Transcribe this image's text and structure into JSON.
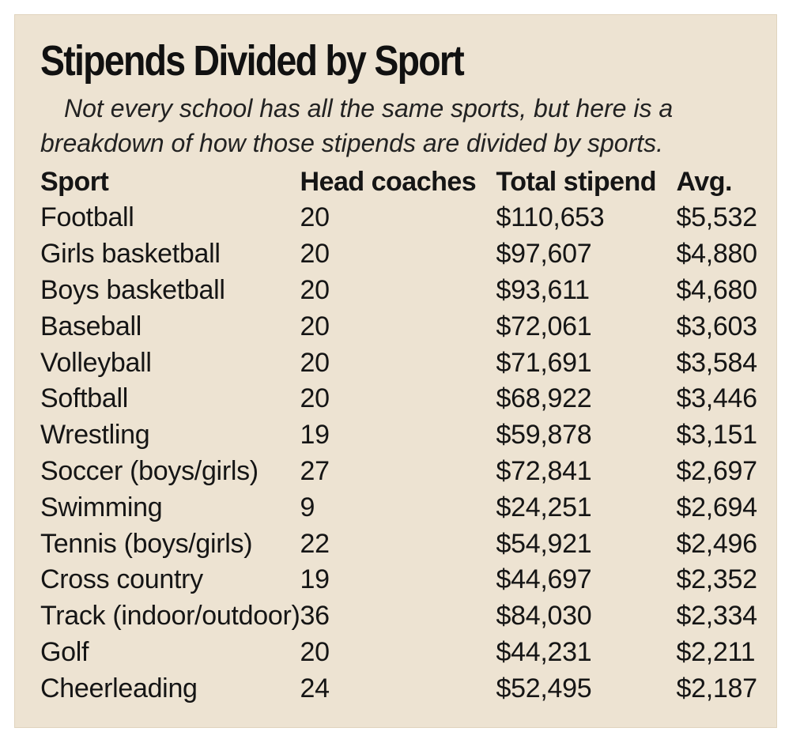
{
  "title": "Stipends Divided by Sport",
  "subtitle": {
    "line1": "Not every school has all the same sports, but here is a",
    "line2": "breakdown of how those stipends are divided by sports."
  },
  "table": {
    "headers": {
      "sport": "Sport",
      "head_coaches": "Head coaches",
      "total_stipend": "Total stipend",
      "avg": "Avg."
    },
    "rows": [
      {
        "sport": "Football",
        "head_coaches": "20",
        "total_stipend": "$110,653",
        "avg": "$5,532"
      },
      {
        "sport": "Girls basketball",
        "head_coaches": "20",
        "total_stipend": "$97,607",
        "avg": "$4,880"
      },
      {
        "sport": "Boys basketball",
        "head_coaches": "20",
        "total_stipend": "$93,611",
        "avg": "$4,680"
      },
      {
        "sport": "Baseball",
        "head_coaches": "20",
        "total_stipend": "$72,061",
        "avg": "$3,603"
      },
      {
        "sport": "Volleyball",
        "head_coaches": "20",
        "total_stipend": "$71,691",
        "avg": "$3,584"
      },
      {
        "sport": "Softball",
        "head_coaches": "20",
        "total_stipend": "$68,922",
        "avg": "$3,446"
      },
      {
        "sport": "Wrestling",
        "head_coaches": "19",
        "total_stipend": "$59,878",
        "avg": "$3,151"
      },
      {
        "sport": "Soccer (boys/girls)",
        "head_coaches": "27",
        "total_stipend": "$72,841",
        "avg": "$2,697"
      },
      {
        "sport": "Swimming",
        "head_coaches": "9",
        "total_stipend": "$24,251",
        "avg": "$2,694"
      },
      {
        "sport": "Tennis (boys/girls)",
        "head_coaches": "22",
        "total_stipend": "$54,921",
        "avg": "$2,496"
      },
      {
        "sport": "Cross country",
        "head_coaches": "19",
        "total_stipend": "$44,697",
        "avg": "$2,352"
      },
      {
        "sport": "Track (indoor/outdoor)",
        "head_coaches": "36",
        "total_stipend": "$84,030",
        "avg": "$2,334"
      },
      {
        "sport": "Golf",
        "head_coaches": "20",
        "total_stipend": "$44,231",
        "avg": "$2,211"
      },
      {
        "sport": "Cheerleading",
        "head_coaches": "24",
        "total_stipend": "$52,495",
        "avg": "$2,187"
      }
    ]
  },
  "colors": {
    "panel_background": "#ede3d2",
    "text": "#151515"
  }
}
